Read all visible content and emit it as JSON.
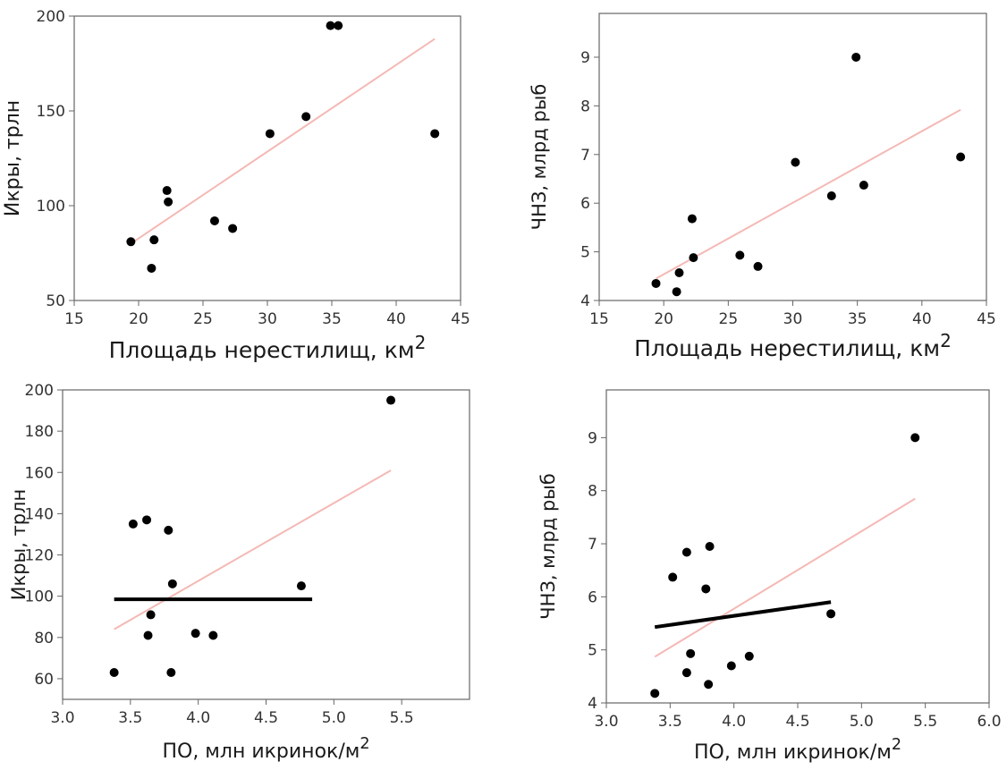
{
  "colors": {
    "trend": "#f4b9b5",
    "points": "#000000",
    "fit": "#000000",
    "frame": "#666666"
  },
  "chart_data": [
    {
      "type": "scatter",
      "xlabel": "Площадь нерестилищ, км",
      "xlabel_sup": "2",
      "ylabel": "Икры, трлн",
      "xlim": [
        15,
        45
      ],
      "ylim": [
        50,
        200
      ],
      "xticks": [
        "15",
        "20",
        "25",
        "30",
        "35",
        "40",
        "45"
      ],
      "yticks": [
        "50",
        "100",
        "150",
        "200"
      ],
      "points": [
        [
          19.4,
          81
        ],
        [
          21.0,
          67
        ],
        [
          21.2,
          82
        ],
        [
          22.2,
          108
        ],
        [
          22.3,
          102
        ],
        [
          25.9,
          92
        ],
        [
          27.3,
          88
        ],
        [
          30.2,
          138
        ],
        [
          33.0,
          147
        ],
        [
          34.9,
          195
        ],
        [
          35.5,
          195
        ],
        [
          43.0,
          138
        ]
      ],
      "trend": [
        [
          19.4,
          80
        ],
        [
          43.0,
          188
        ]
      ],
      "fit": null
    },
    {
      "type": "scatter",
      "xlabel": "Площадь нерестилищ, км",
      "xlabel_sup": "2",
      "ylabel": "ЧНЗ, млрд рыб",
      "xlim": [
        15,
        45
      ],
      "ylim": [
        4,
        9.9
      ],
      "xticks": [
        "15",
        "20",
        "25",
        "30",
        "35",
        "40",
        "45"
      ],
      "yticks": [
        "4",
        "5",
        "6",
        "7",
        "8",
        "9"
      ],
      "points": [
        [
          19.4,
          4.35
        ],
        [
          21.0,
          4.18
        ],
        [
          21.2,
          4.57
        ],
        [
          22.2,
          5.68
        ],
        [
          22.3,
          4.88
        ],
        [
          25.9,
          4.93
        ],
        [
          27.3,
          4.7
        ],
        [
          30.2,
          6.84
        ],
        [
          33.0,
          6.15
        ],
        [
          34.9,
          9.0
        ],
        [
          35.5,
          6.37
        ],
        [
          43.0,
          6.95
        ]
      ],
      "trend": [
        [
          19.4,
          4.45
        ],
        [
          43.0,
          7.92
        ]
      ],
      "fit": null
    },
    {
      "type": "scatter",
      "xlabel": "ПО, млн икринок/м",
      "xlabel_sup": "2",
      "ylabel": "Икры, трлн",
      "xlim": [
        3.0,
        6.0
      ],
      "ylim": [
        50,
        200
      ],
      "xticks": [
        "3.0",
        "3.5",
        "4.0",
        "4.5",
        "5.0",
        "5.5"
      ],
      "yticks": [
        "60",
        "80",
        "100",
        "120",
        "140",
        "160",
        "180",
        "200"
      ],
      "points": [
        [
          3.38,
          63
        ],
        [
          3.52,
          135
        ],
        [
          3.62,
          137
        ],
        [
          3.63,
          81
        ],
        [
          3.65,
          91
        ],
        [
          3.78,
          132
        ],
        [
          3.8,
          63
        ],
        [
          3.81,
          106
        ],
        [
          3.98,
          82
        ],
        [
          4.11,
          81
        ],
        [
          4.76,
          105
        ],
        [
          5.42,
          195
        ]
      ],
      "trend": [
        [
          3.38,
          84
        ],
        [
          5.42,
          161
        ]
      ],
      "fit": [
        [
          3.38,
          98.5
        ],
        [
          4.84,
          98.5
        ]
      ]
    },
    {
      "type": "scatter",
      "xlabel": "ПО, млн икринок/м",
      "xlabel_sup": "2",
      "ylabel": "ЧНЗ, млрд рыб",
      "xlim": [
        3.0,
        6.0
      ],
      "ylim": [
        4,
        9.9
      ],
      "xticks": [
        "3.0",
        "3.5",
        "4.0",
        "4.5",
        "5.0",
        "5.5",
        "6.0"
      ],
      "yticks": [
        "4",
        "5",
        "6",
        "7",
        "8",
        "9"
      ],
      "points": [
        [
          3.38,
          4.18
        ],
        [
          3.52,
          6.37
        ],
        [
          3.63,
          6.84
        ],
        [
          3.63,
          4.57
        ],
        [
          3.66,
          4.93
        ],
        [
          3.78,
          6.15
        ],
        [
          3.8,
          4.35
        ],
        [
          3.81,
          6.95
        ],
        [
          3.98,
          4.7
        ],
        [
          4.12,
          4.88
        ],
        [
          4.76,
          5.68
        ],
        [
          5.42,
          9.0
        ]
      ],
      "trend": [
        [
          3.38,
          4.87
        ],
        [
          5.42,
          7.85
        ]
      ],
      "fit": [
        [
          3.38,
          5.43
        ],
        [
          4.76,
          5.9
        ]
      ]
    }
  ]
}
